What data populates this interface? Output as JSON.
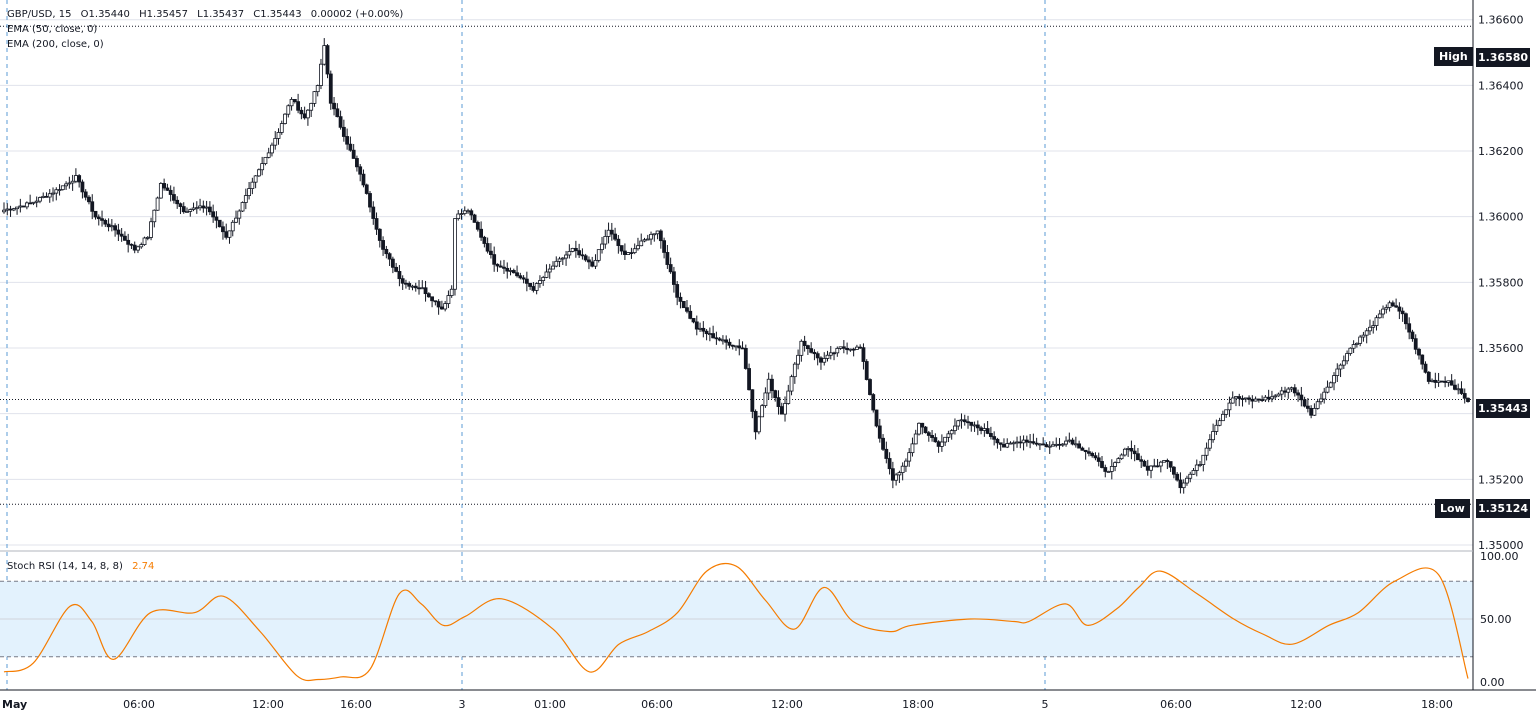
{
  "legend": {
    "symbol": "GBP/USD, 15",
    "open": "O1.35440",
    "high": "H1.35457",
    "low": "L1.35437",
    "close": "C1.35443",
    "change": "0.00002 (+0.00%)",
    "indicators": [
      "EMA (50, close, 0)",
      "EMA (200, close, 0)"
    ]
  },
  "markers": {
    "high_label": "High",
    "high_value": "1.36580",
    "low_label": "Low",
    "low_value": "1.35124",
    "last_value": "1.35443"
  },
  "stoch": {
    "label": "Stoch RSI (14, 14, 8, 8)",
    "value": "2.74",
    "color": "#f57c00",
    "band_color": "#e3f2fd",
    "upper": 80,
    "lower": 20,
    "ticks": [
      "100.00",
      "50.00",
      "0.00"
    ]
  },
  "chart_data": [
    {
      "type": "candlestick",
      "title": "GBP/USD, 15",
      "ylim": [
        1.35,
        1.3666
      ],
      "price_ticks": [
        "1.35000",
        "1.35200",
        "1.35400",
        "1.35600",
        "1.35800",
        "1.36000",
        "1.36200",
        "1.36400",
        "1.36600"
      ],
      "time_ticks": [
        "May",
        "06:00",
        "12:00",
        "16:00",
        "3",
        "01:00",
        "06:00",
        "12:00",
        "18:00",
        "5",
        "06:00",
        "12:00",
        "18:00"
      ],
      "session_breaks": [
        "3",
        "5"
      ],
      "anchors": [
        [
          0,
          1.3602
        ],
        [
          8,
          1.3604
        ],
        [
          16,
          1.3608
        ],
        [
          22,
          1.3612
        ],
        [
          28,
          1.36
        ],
        [
          34,
          1.3596
        ],
        [
          40,
          1.359
        ],
        [
          44,
          1.3594
        ],
        [
          48,
          1.361
        ],
        [
          55,
          1.3602
        ],
        [
          62,
          1.3603
        ],
        [
          68,
          1.3594
        ],
        [
          74,
          1.3606
        ],
        [
          80,
          1.3618
        ],
        [
          84,
          1.3626
        ],
        [
          88,
          1.3636
        ],
        [
          92,
          1.363
        ],
        [
          96,
          1.364
        ],
        [
          98,
          1.3652
        ],
        [
          100,
          1.3635
        ],
        [
          104,
          1.3625
        ],
        [
          110,
          1.361
        ],
        [
          116,
          1.359
        ],
        [
          122,
          1.358
        ],
        [
          128,
          1.3578
        ],
        [
          134,
          1.3572
        ],
        [
          137,
          1.3578
        ],
        [
          138,
          1.36
        ],
        [
          142,
          1.3602
        ],
        [
          145,
          1.3596
        ],
        [
          150,
          1.3586
        ],
        [
          156,
          1.3583
        ],
        [
          162,
          1.3578
        ],
        [
          168,
          1.3585
        ],
        [
          174,
          1.359
        ],
        [
          180,
          1.3585
        ],
        [
          185,
          1.3596
        ],
        [
          190,
          1.3588
        ],
        [
          195,
          1.3592
        ],
        [
          200,
          1.3596
        ],
        [
          206,
          1.3576
        ],
        [
          212,
          1.3566
        ],
        [
          220,
          1.3562
        ],
        [
          226,
          1.356
        ],
        [
          230,
          1.3535
        ],
        [
          234,
          1.355
        ],
        [
          238,
          1.354
        ],
        [
          244,
          1.3562
        ],
        [
          250,
          1.3556
        ],
        [
          256,
          1.356
        ],
        [
          262,
          1.356
        ],
        [
          268,
          1.3532
        ],
        [
          272,
          1.352
        ],
        [
          276,
          1.3525
        ],
        [
          280,
          1.3537
        ],
        [
          286,
          1.353
        ],
        [
          292,
          1.3538
        ],
        [
          300,
          1.3535
        ],
        [
          306,
          1.353
        ],
        [
          312,
          1.3532
        ],
        [
          320,
          1.353
        ],
        [
          326,
          1.3532
        ],
        [
          332,
          1.3528
        ],
        [
          338,
          1.3522
        ],
        [
          344,
          1.353
        ],
        [
          350,
          1.3523
        ],
        [
          356,
          1.3526
        ],
        [
          360,
          1.3518
        ],
        [
          366,
          1.3525
        ],
        [
          370,
          1.3535
        ],
        [
          376,
          1.3545
        ],
        [
          382,
          1.3544
        ],
        [
          388,
          1.3545
        ],
        [
          394,
          1.3548
        ],
        [
          400,
          1.354
        ],
        [
          406,
          1.355
        ],
        [
          412,
          1.356
        ],
        [
          418,
          1.3566
        ],
        [
          424,
          1.3574
        ],
        [
          428,
          1.357
        ],
        [
          432,
          1.356
        ],
        [
          436,
          1.355
        ],
        [
          442,
          1.355
        ],
        [
          448,
          1.3544
        ]
      ],
      "stoch_rsi": {
        "ylim": [
          0,
          100
        ],
        "x": [
          0,
          0.02,
          0.045,
          0.06,
          0.075,
          0.1,
          0.13,
          0.15,
          0.175,
          0.2,
          0.215,
          0.23,
          0.25,
          0.27,
          0.285,
          0.3,
          0.315,
          0.34,
          0.375,
          0.4,
          0.42,
          0.44,
          0.46,
          0.48,
          0.5,
          0.52,
          0.54,
          0.56,
          0.58,
          0.605,
          0.62,
          0.66,
          0.69,
          0.7,
          0.725,
          0.74,
          0.76,
          0.775,
          0.79,
          0.815,
          0.84,
          0.86,
          0.88,
          0.905,
          0.925,
          0.95,
          0.98,
          1.0
        ],
        "values": [
          8,
          15,
          60,
          48,
          18,
          55,
          55,
          68,
          40,
          5,
          2,
          4,
          10,
          70,
          62,
          45,
          52,
          66,
          42,
          8,
          30,
          40,
          55,
          88,
          92,
          65,
          42,
          75,
          48,
          40,
          45,
          50,
          48,
          48,
          62,
          45,
          58,
          75,
          88,
          70,
          50,
          38,
          30,
          45,
          55,
          80,
          85,
          2.74
        ]
      }
    }
  ]
}
